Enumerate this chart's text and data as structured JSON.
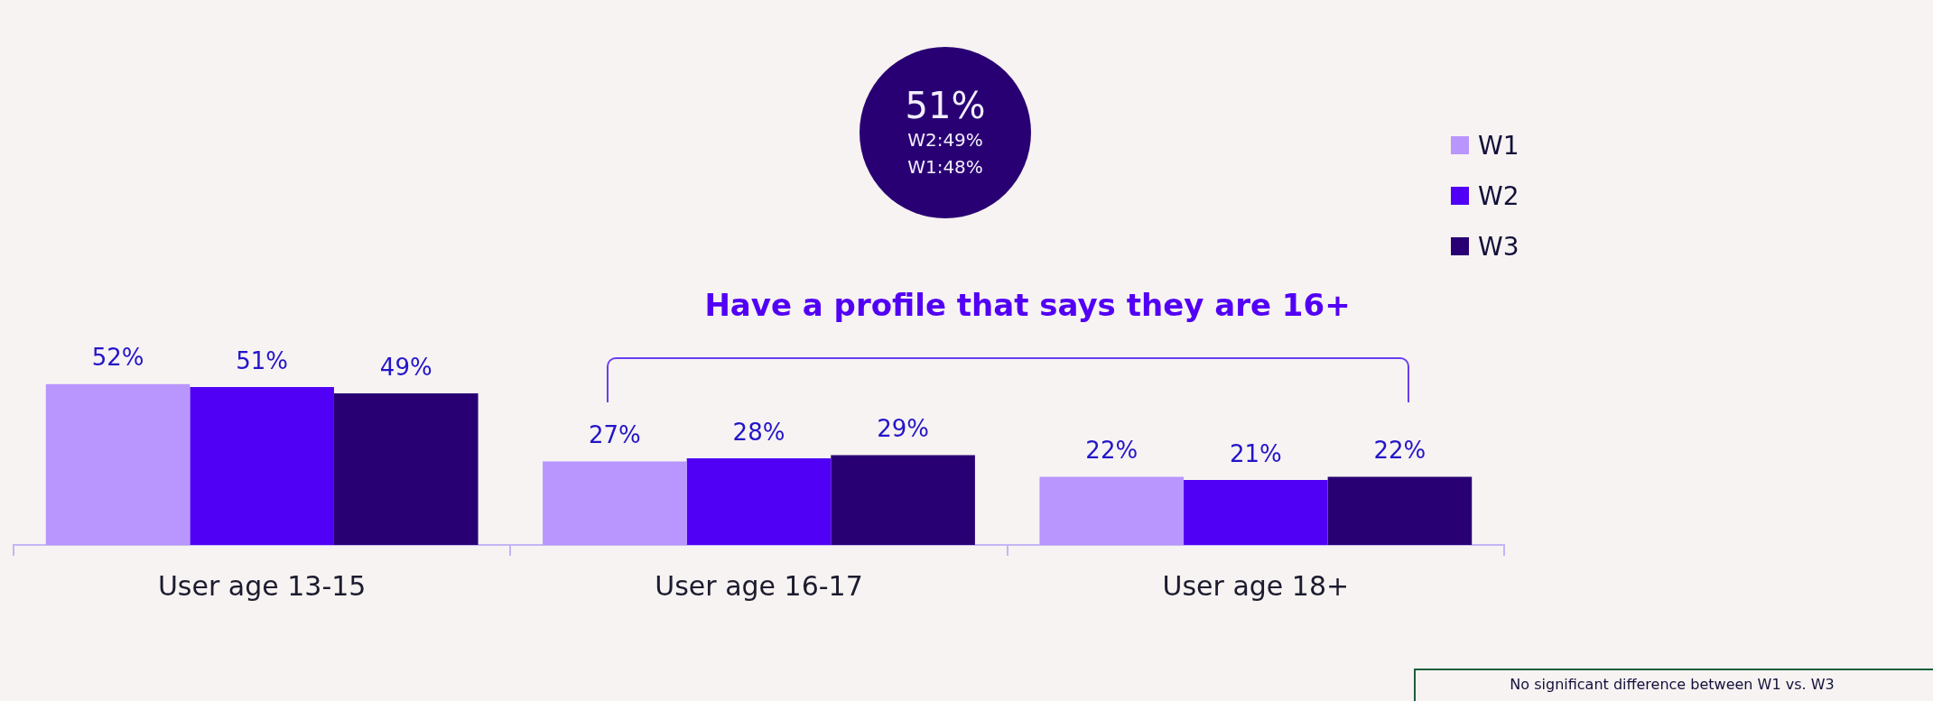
{
  "chart_data": {
    "type": "bar",
    "categories": [
      "User age 13-15",
      "User age 16-17",
      "User age 18+"
    ],
    "series": [
      {
        "name": "W1",
        "color": "#b896fe",
        "values": [
          52,
          27,
          22
        ],
        "value_labels": [
          "52%",
          "27%",
          "22%"
        ]
      },
      {
        "name": "W2",
        "color": "#5000f5",
        "values": [
          51,
          28,
          21
        ],
        "value_labels": [
          "51%",
          "28%",
          "21%"
        ]
      },
      {
        "name": "W3",
        "color": "#290073",
        "values": [
          49,
          29,
          22
        ],
        "value_labels": [
          "49%",
          "29%",
          "22%"
        ]
      }
    ],
    "legend": "top right",
    "annotations": [
      "51%",
      "W2:49%",
      "W1:48%",
      "Have a profile that says they are 16+",
      "No significant difference between W1 vs. W3"
    ]
  }
}
